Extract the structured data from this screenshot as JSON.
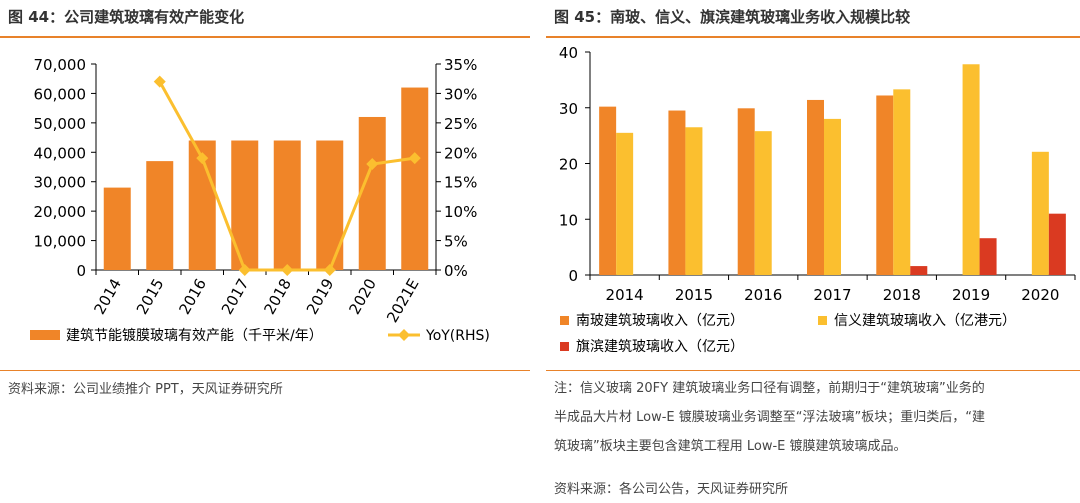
{
  "left": {
    "title": "图 44：公司建筑玻璃有效产能变化",
    "source": "资料来源：公司业绩推介 PPT，天风证券研究所"
  },
  "right": {
    "title": "图 45：南玻、信义、旗滨建筑玻璃业务收入规模比较",
    "note_lines": [
      "注：信义玻璃 20FY 建筑玻璃业务口径有调整，前期归于“建筑玻璃”业务的",
      "半成品大片材 Low-E 镀膜玻璃业务调整至“浮法玻璃”板块；重归类后，“建",
      "筑玻璃”板块主要包含建筑工程用 Low-E 镀膜建筑玻璃成品。"
    ],
    "source": "资料来源：各公司公告，天风证券研究所"
  },
  "colors": {
    "accent": "#E8822A",
    "bar_orange": "#F08528",
    "line_yellow": "#FBBF2F",
    "bar_red": "#DA3A21"
  },
  "chart_data": [
    {
      "type": "bar",
      "categories": [
        "2014",
        "2015",
        "2016",
        "2017",
        "2018",
        "2019",
        "2020",
        "2021E"
      ],
      "series": [
        {
          "name": "建筑节能镀膜玻璃有效产能（千平米/年）",
          "type": "bar",
          "axis": "left",
          "values": [
            28000,
            37000,
            44000,
            44000,
            44000,
            44000,
            52000,
            62000
          ]
        },
        {
          "name": "YoY(RHS)",
          "type": "line",
          "axis": "right",
          "values": [
            null,
            32,
            19,
            0,
            0,
            0,
            18,
            19
          ]
        }
      ],
      "y_left": {
        "min": 0,
        "max": 70000,
        "ticks": [
          "0",
          "10,000",
          "20,000",
          "30,000",
          "40,000",
          "50,000",
          "60,000",
          "70,000"
        ]
      },
      "y_right": {
        "min": 0,
        "max": 35,
        "ticks": [
          "0%",
          "5%",
          "10%",
          "15%",
          "20%",
          "25%",
          "30%",
          "35%"
        ]
      },
      "legend_placement": "bottom",
      "grid": false
    },
    {
      "type": "bar",
      "categories": [
        "2014",
        "2015",
        "2016",
        "2017",
        "2018",
        "2019",
        "2020"
      ],
      "series": [
        {
          "name": "南玻建筑玻璃收入（亿元）",
          "values": [
            30.2,
            29.5,
            29.9,
            31.4,
            32.2,
            null,
            null
          ]
        },
        {
          "name": "信义建筑玻璃收入（亿港元）",
          "values": [
            25.5,
            26.5,
            25.8,
            28.0,
            33.3,
            37.8,
            22.1
          ]
        },
        {
          "name": "旗滨建筑玻璃收入（亿元）",
          "values": [
            null,
            null,
            null,
            null,
            1.6,
            6.6,
            11.0
          ]
        }
      ],
      "y": {
        "min": 0,
        "max": 40,
        "ticks": [
          "0",
          "10",
          "20",
          "30",
          "40"
        ]
      },
      "legend_placement": "bottom",
      "grid": false
    }
  ]
}
